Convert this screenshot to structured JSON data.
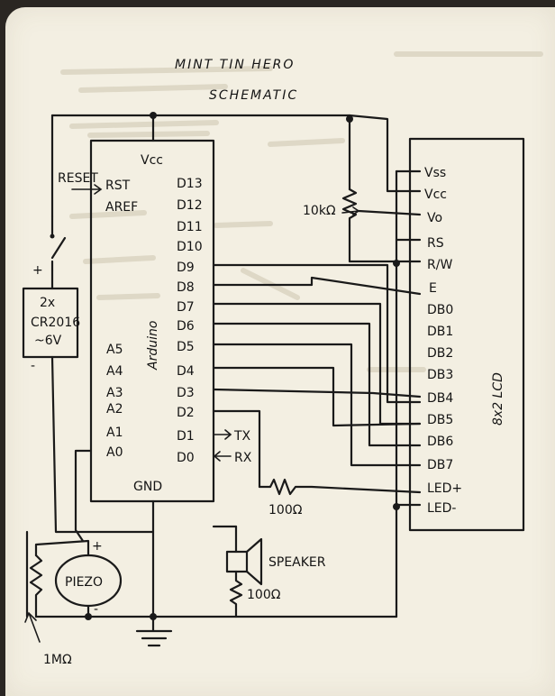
{
  "title": "MINT TIN HERO",
  "subtitle": "SCHEMATIC",
  "arduino": {
    "label": "Arduino",
    "vcc": "Vcc",
    "gnd": "GND",
    "rst": "RST",
    "aref": "AREF",
    "left_pins": [
      "A5",
      "A4",
      "A3",
      "A2",
      "A1",
      "A0"
    ],
    "right_pins": [
      "D13",
      "D12",
      "D11",
      "D10",
      "D9",
      "D8",
      "D7",
      "D6",
      "D5",
      "D4",
      "D3",
      "D2",
      "D1",
      "D0"
    ]
  },
  "reset_label": "RESET",
  "battery": {
    "line1": "2x",
    "line2": "CR2016",
    "line3": "~6V"
  },
  "battery_plus": "+",
  "battery_minus": "-",
  "tx": "TX",
  "rx": "RX",
  "pot_label": "10kΩ",
  "resistor1": "100Ω",
  "resistor2": "100Ω",
  "speaker": "SPEAKER",
  "piezo": "PIEZO",
  "piezo_plus": "+",
  "piezo_minus": "-",
  "piezo_resistor": "1MΩ",
  "lcd": {
    "label": "8x2 LCD",
    "pins": [
      "Vss",
      "Vcc",
      "Vo",
      "RS",
      "R/W",
      "E",
      "DB0",
      "DB1",
      "DB2",
      "DB3",
      "DB4",
      "DB5",
      "DB6",
      "DB7",
      "LED+",
      "LED-"
    ]
  }
}
